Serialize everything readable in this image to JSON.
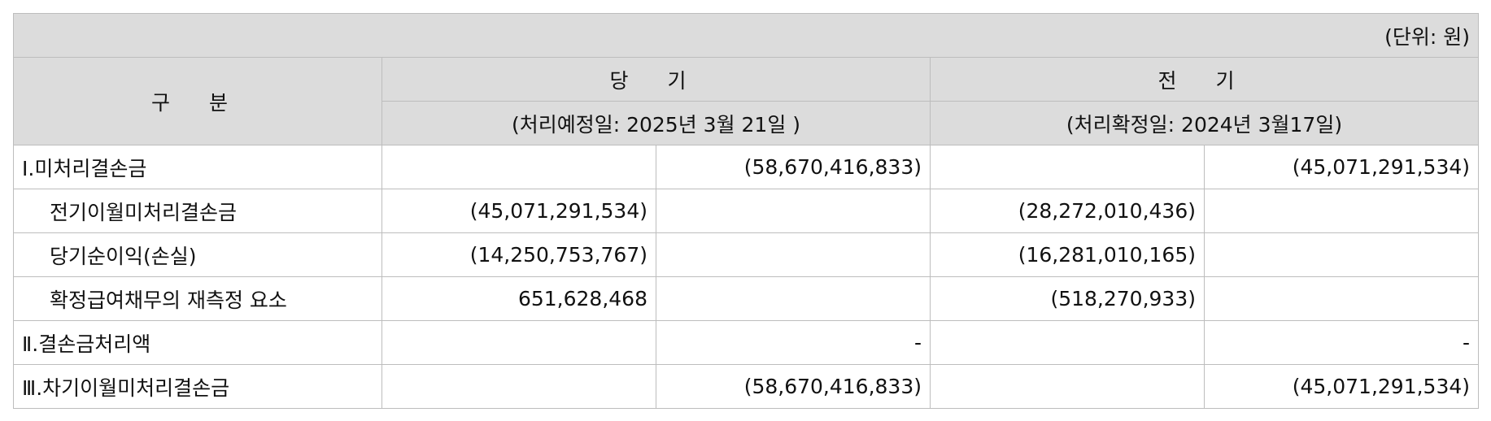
{
  "unit_label": "(단위: 원)",
  "header": {
    "category": "구 분",
    "current_period": "당 기",
    "prior_period": "전 기",
    "current_date": "(처리예정일: 2025년 3월 21일 )",
    "prior_date": "(처리확정일: 2024년 3월17일)"
  },
  "rows": [
    {
      "label": "Ⅰ.미처리결손금",
      "c1": "",
      "c2": "(58,670,416,833)",
      "p1": "",
      "p2": "(45,071,291,534)"
    },
    {
      "label": "전기이월미처리결손금",
      "c1": "(45,071,291,534)",
      "c2": "",
      "p1": "(28,272,010,436)",
      "p2": ""
    },
    {
      "label": "당기순이익(손실)",
      "c1": "(14,250,753,767)",
      "c2": "",
      "p1": "(16,281,010,165)",
      "p2": ""
    },
    {
      "label": "확정급여채무의 재측정 요소",
      "c1": "651,628,468",
      "c2": "",
      "p1": "(518,270,933)",
      "p2": ""
    },
    {
      "label": "Ⅱ.결손금처리액",
      "c1": "",
      "c2": "-",
      "p1": "",
      "p2": "-"
    },
    {
      "label": "Ⅲ.차기이월미처리결손금",
      "c1": "",
      "c2": "(58,670,416,833)",
      "p1": "",
      "p2": "(45,071,291,534)"
    }
  ]
}
